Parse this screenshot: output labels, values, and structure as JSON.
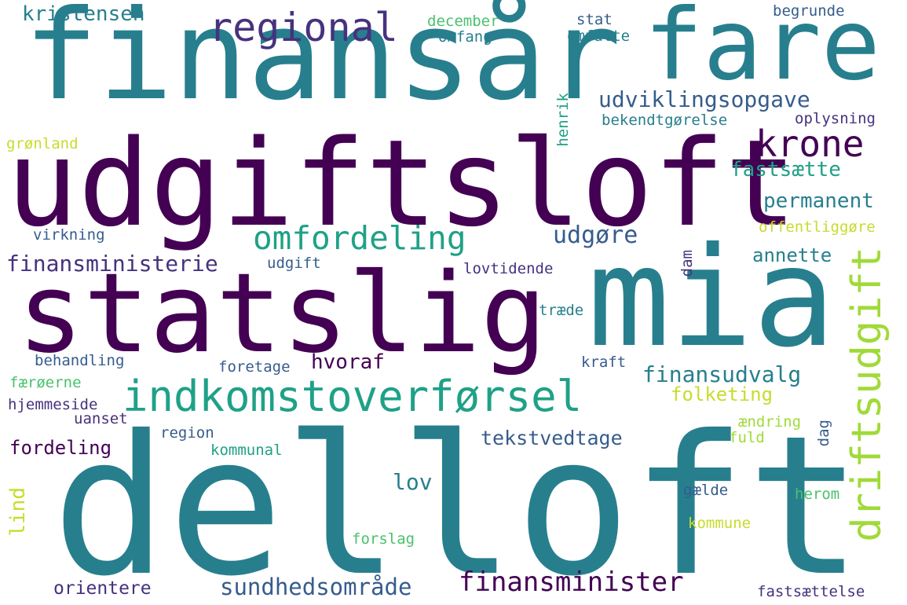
{
  "words": {
    "delloft": "delloft",
    "finansaar": "finansår",
    "udgiftsloft": "udgiftsloft",
    "statslig": "statslig",
    "mia": "mia",
    "fare": "fare",
    "indkomstoverforsel": "indkomstoverførsel",
    "krone": "krone",
    "regional": "regional",
    "omfordeling": "omfordeling",
    "driftsudgift": "driftsudgift",
    "udviklingsopgave": "udviklingsopgave",
    "finansminister": "finansminister",
    "sundhedsomraade": "sundhedsområde",
    "finansudvalg": "finansudvalg",
    "udgore": "udgøre",
    "finansministerie": "finansministerie",
    "folketing": "folketing",
    "hvoraf": "hvoraf",
    "tekstvedtage": "tekstvedtage",
    "kristensen": "kristensen",
    "permanent": "permanent",
    "fastsaette": "fastsætte",
    "annette": "annette",
    "lov": "lov",
    "fordeling": "fordeling",
    "orientere": "orientere",
    "lind": "lind",
    "december": "december",
    "omfang": "omfang",
    "stat": "stat",
    "omfatte": "omfatte",
    "begrunde": "begrunde",
    "bekendtgorelse": "bekendtgørelse",
    "oplysning": "oplysning",
    "henrik": "henrik",
    "gronland": "grønland",
    "virkning": "virkning",
    "offentliggore": "offentliggøre",
    "dam": "dam",
    "udgift": "udgift",
    "lovtidende": "lovtidende",
    "traede": "træde",
    "behandling": "behandling",
    "foretage": "foretage",
    "kraft": "kraft",
    "faeroerne": "færøerne",
    "hjemmeside": "hjemmeside",
    "uanset": "uanset",
    "region": "region",
    "aendring": "ændring",
    "fuld": "fuld",
    "dag": "dag",
    "kommunal": "kommunal",
    "gaelde": "gælde",
    "herom": "herom",
    "kommune": "kommune",
    "forslag": "forslag",
    "fastsaettelse": "fastsættelse"
  }
}
